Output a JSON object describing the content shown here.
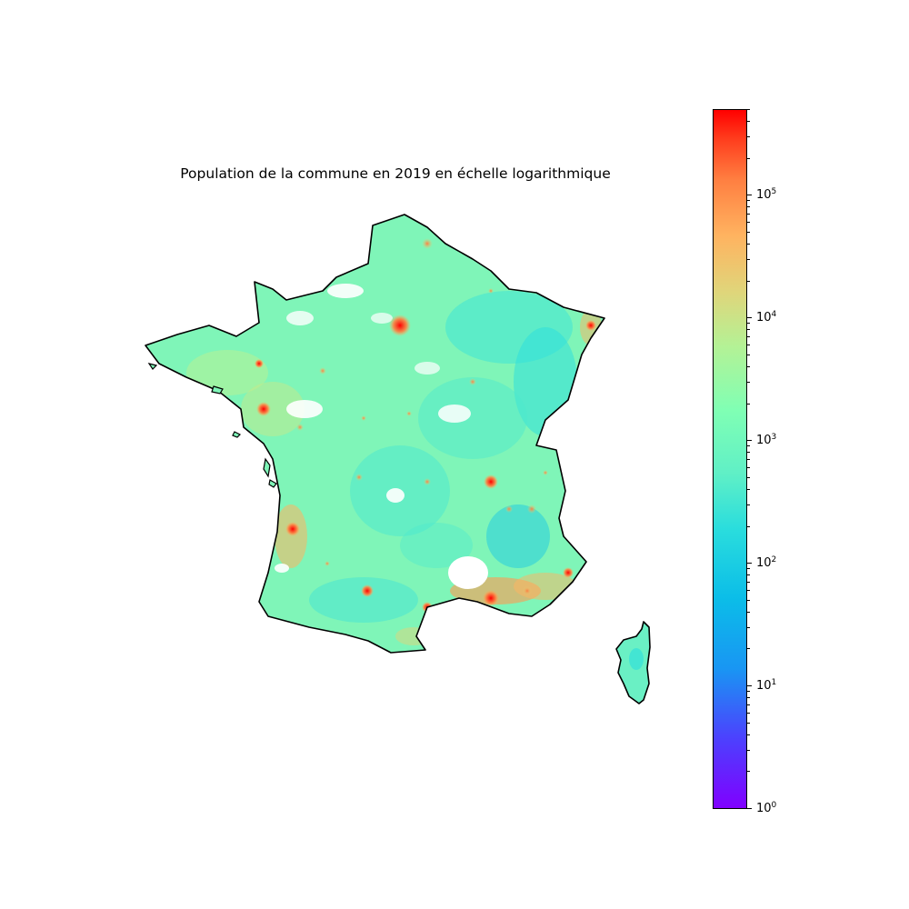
{
  "title": "Population de la commune en 2019 en échelle logarithmique",
  "colorbar": {
    "scale": "log",
    "colormap": "rainbow",
    "range": [
      1,
      500000
    ],
    "ticks": [
      {
        "base": "10",
        "exp": "0",
        "value": 1
      },
      {
        "base": "10",
        "exp": "1",
        "value": 10
      },
      {
        "base": "10",
        "exp": "2",
        "value": 100
      },
      {
        "base": "10",
        "exp": "3",
        "value": 1000
      },
      {
        "base": "10",
        "exp": "4",
        "value": 10000
      },
      {
        "base": "10",
        "exp": "5",
        "value": 100000
      }
    ]
  },
  "colors": {
    "low": "#8000ff",
    "mid": "#80ffb4",
    "high": "#ff0000",
    "outline": "#000000",
    "background": "#ffffff"
  },
  "regions": [
    "France métropolitaine",
    "Corse"
  ]
}
